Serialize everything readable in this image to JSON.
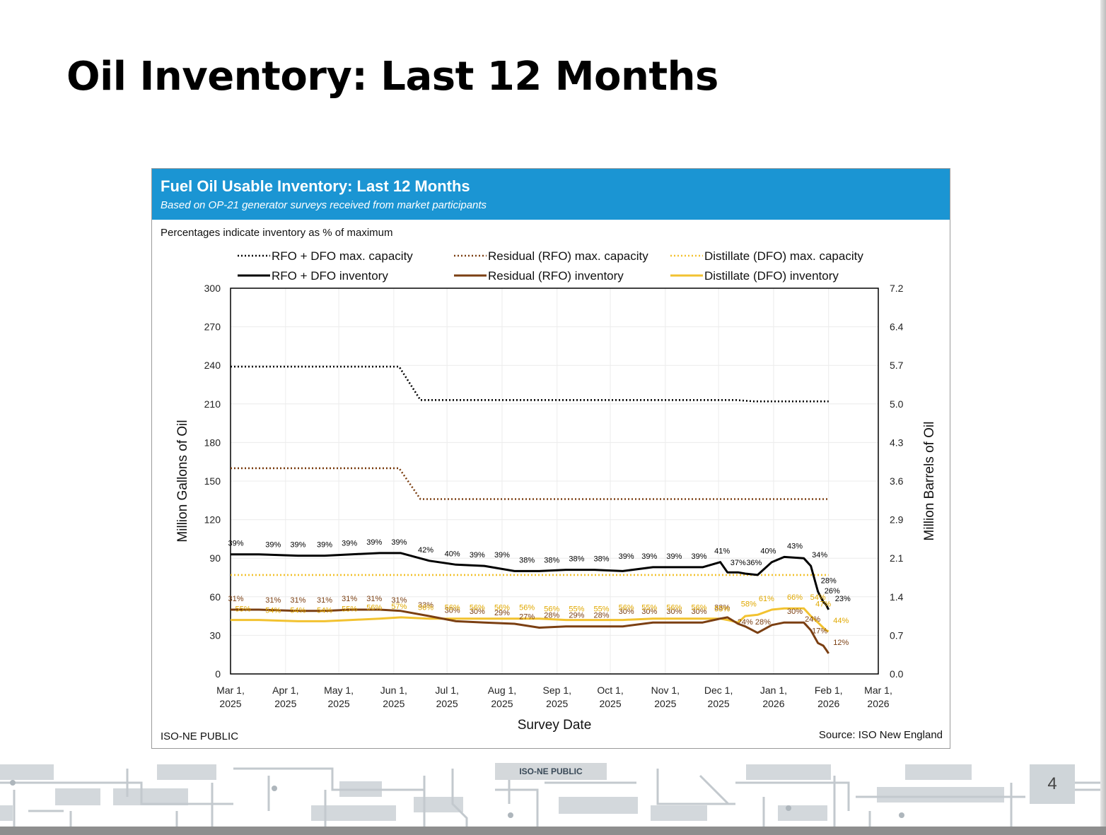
{
  "slide": {
    "title": "Oil Inventory: Last 12 Months",
    "footer_tag": "ISO-NE PUBLIC",
    "page_number": "4"
  },
  "panel": {
    "title": "Fuel Oil Usable Inventory: Last 12 Months",
    "subtitle": "Based on OP-21 generator surveys received from market participants",
    "note": "Percentages indicate inventory as % of maximum",
    "footer_left": "ISO-NE PUBLIC",
    "footer_right": "Source: ISO New England"
  },
  "colors": {
    "header": "#1b95d3",
    "total": "#000000",
    "rfo": "#7b3f12",
    "dfo": "#f2c230",
    "dfo_label": "#e0a800",
    "rfo_label": "#7b3f12"
  },
  "chart_data": {
    "type": "line",
    "title": "Fuel Oil Usable Inventory: Last 12 Months",
    "xlabel": "Survey Date",
    "ylabel": "Million Gallons of Oil",
    "y2label": "Million Barrels of Oil",
    "ylim": [
      0,
      300
    ],
    "yticks": [
      0,
      30,
      60,
      90,
      120,
      150,
      180,
      210,
      240,
      270,
      300
    ],
    "y2ticks": [
      "0.0",
      "0.7",
      "1.4",
      "2.1",
      "2.9",
      "3.6",
      "4.3",
      "5.0",
      "5.7",
      "6.4",
      "7.2"
    ],
    "x_range_days": [
      0,
      365
    ],
    "xticks": [
      {
        "day": 0,
        "line1": "Mar 1,",
        "line2": "2025"
      },
      {
        "day": 31,
        "line1": "Apr 1,",
        "line2": "2025"
      },
      {
        "day": 61,
        "line1": "May 1,",
        "line2": "2025"
      },
      {
        "day": 92,
        "line1": "Jun 1,",
        "line2": "2025"
      },
      {
        "day": 122,
        "line1": "Jul 1,",
        "line2": "2025"
      },
      {
        "day": 153,
        "line1": "Aug 1,",
        "line2": "2025"
      },
      {
        "day": 184,
        "line1": "Sep 1,",
        "line2": "2025"
      },
      {
        "day": 214,
        "line1": "Oct 1,",
        "line2": "2025"
      },
      {
        "day": 245,
        "line1": "Nov 1,",
        "line2": "2025"
      },
      {
        "day": 275,
        "line1": "Dec 1,",
        "line2": "2025"
      },
      {
        "day": 306,
        "line1": "Jan 1,",
        "line2": "2026"
      },
      {
        "day": 337,
        "line1": "Feb 1,",
        "line2": "2026"
      },
      {
        "day": 365,
        "line1": "Mar 1,",
        "line2": "2026"
      }
    ],
    "legend": [
      {
        "label": "RFO + DFO max. capacity",
        "series": "total_max"
      },
      {
        "label": "Residual (RFO) max. capacity",
        "series": "rfo_max"
      },
      {
        "label": "Distillate (DFO) max. capacity",
        "series": "dfo_max"
      },
      {
        "label": "RFO + DFO inventory",
        "series": "total"
      },
      {
        "label": "Residual (RFO) inventory",
        "series": "rfo"
      },
      {
        "label": "Distillate (DFO) inventory",
        "series": "dfo"
      }
    ],
    "series": [
      {
        "key": "total_max",
        "name": "RFO + DFO max. capacity",
        "style": "dotted",
        "color": "#000000",
        "x": [
          0,
          95,
          107,
          285,
          295,
          337
        ],
        "y": [
          239,
          239,
          213,
          213,
          212,
          212
        ]
      },
      {
        "key": "rfo_max",
        "name": "Residual (RFO) max. capacity",
        "style": "dotted",
        "color": "#7b3f12",
        "x": [
          0,
          95,
          107,
          337
        ],
        "y": [
          160,
          160,
          136,
          136
        ]
      },
      {
        "key": "dfo_max",
        "name": "Distillate (DFO) max. capacity",
        "style": "dotted",
        "color": "#f2c230",
        "x": [
          0,
          337
        ],
        "y": [
          77,
          77
        ]
      },
      {
        "key": "total",
        "name": "RFO + DFO inventory",
        "style": "solid",
        "color": "#000000",
        "x": [
          0,
          16,
          38,
          53,
          68,
          84,
          96,
          112,
          127,
          143,
          160,
          174,
          189,
          205,
          221,
          238,
          252,
          266,
          276,
          280,
          286,
          290,
          297,
          305,
          312,
          323,
          327,
          331,
          334,
          335.5,
          337
        ],
        "y": [
          93,
          93,
          92,
          92,
          93,
          94,
          94,
          88,
          85,
          84,
          80,
          80,
          81,
          81,
          80,
          83,
          83,
          83,
          87,
          79,
          79,
          78,
          77,
          87,
          91,
          90,
          84,
          64,
          56,
          54,
          50
        ],
        "labels": [
          {
            "x": 3,
            "y": 93,
            "text": "39%"
          },
          {
            "x": 24,
            "y": 92,
            "text": "39%"
          },
          {
            "x": 38,
            "y": 92,
            "text": "39%"
          },
          {
            "x": 53,
            "y": 92,
            "text": "39%"
          },
          {
            "x": 67,
            "y": 93,
            "text": "39%"
          },
          {
            "x": 81,
            "y": 94,
            "text": "39%"
          },
          {
            "x": 95,
            "y": 94,
            "text": "39%"
          },
          {
            "x": 110,
            "y": 88,
            "text": "42%"
          },
          {
            "x": 125,
            "y": 85,
            "text": "40%"
          },
          {
            "x": 139,
            "y": 84,
            "text": "39%"
          },
          {
            "x": 153,
            "y": 84,
            "text": "39%"
          },
          {
            "x": 167,
            "y": 80,
            "text": "38%"
          },
          {
            "x": 181,
            "y": 80,
            "text": "38%"
          },
          {
            "x": 195,
            "y": 81,
            "text": "38%"
          },
          {
            "x": 209,
            "y": 81,
            "text": "38%"
          },
          {
            "x": 223,
            "y": 83,
            "text": "39%"
          },
          {
            "x": 236,
            "y": 83,
            "text": "39%"
          },
          {
            "x": 250,
            "y": 83,
            "text": "39%"
          },
          {
            "x": 264,
            "y": 83,
            "text": "39%"
          },
          {
            "x": 277,
            "y": 87,
            "text": "41%"
          },
          {
            "x": 286,
            "y": 78,
            "text": "37%"
          },
          {
            "x": 295,
            "y": 78,
            "text": "36%"
          },
          {
            "x": 303,
            "y": 87,
            "text": "40%"
          },
          {
            "x": 318,
            "y": 91,
            "text": "43%"
          },
          {
            "x": 332,
            "y": 84,
            "text": "34%"
          },
          {
            "x": 337,
            "y": 64,
            "text": "28%"
          },
          {
            "x": 339,
            "y": 56,
            "text": "26%"
          },
          {
            "x": 345,
            "y": 50,
            "text": "23%"
          }
        ]
      },
      {
        "key": "rfo",
        "name": "Residual (RFO) inventory",
        "style": "solid",
        "color": "#7b3f12",
        "x": [
          0,
          16,
          38,
          53,
          68,
          84,
          96,
          112,
          127,
          143,
          160,
          174,
          189,
          205,
          221,
          238,
          252,
          266,
          276,
          280,
          286,
          290,
          297,
          305,
          312,
          323,
          327,
          331,
          334,
          335.5,
          337
        ],
        "y": [
          50,
          50,
          49,
          49,
          50,
          50,
          49,
          45,
          41,
          40,
          39,
          36,
          37,
          37,
          37,
          40,
          40,
          40,
          43,
          44,
          39,
          37,
          32,
          38,
          40,
          40,
          34,
          24,
          22,
          19,
          16
        ],
        "labels": [
          {
            "x": 3,
            "y": 50,
            "text": "31%"
          },
          {
            "x": 24,
            "y": 49,
            "text": "31%"
          },
          {
            "x": 38,
            "y": 49,
            "text": "31%"
          },
          {
            "x": 53,
            "y": 49,
            "text": "31%"
          },
          {
            "x": 67,
            "y": 50,
            "text": "31%"
          },
          {
            "x": 81,
            "y": 50,
            "text": "31%"
          },
          {
            "x": 95,
            "y": 49,
            "text": "31%"
          },
          {
            "x": 110,
            "y": 45,
            "text": "33%"
          },
          {
            "x": 125,
            "y": 41,
            "text": "30%"
          },
          {
            "x": 139,
            "y": 40,
            "text": "30%"
          },
          {
            "x": 153,
            "y": 39,
            "text": "29%"
          },
          {
            "x": 167,
            "y": 36,
            "text": "27%"
          },
          {
            "x": 181,
            "y": 37,
            "text": "28%"
          },
          {
            "x": 195,
            "y": 37,
            "text": "29%"
          },
          {
            "x": 209,
            "y": 37,
            "text": "28%"
          },
          {
            "x": 223,
            "y": 40,
            "text": "30%"
          },
          {
            "x": 236,
            "y": 40,
            "text": "30%"
          },
          {
            "x": 250,
            "y": 40,
            "text": "30%"
          },
          {
            "x": 264,
            "y": 40,
            "text": "30%"
          },
          {
            "x": 277,
            "y": 43,
            "text": "33%"
          },
          {
            "x": 290,
            "y": 32,
            "text": "24%"
          },
          {
            "x": 300,
            "y": 32,
            "text": "28%"
          },
          {
            "x": 318,
            "y": 40,
            "text": "30%"
          },
          {
            "x": 328,
            "y": 34,
            "text": "24%"
          },
          {
            "x": 332,
            "y": 25,
            "text": "17%"
          },
          {
            "x": 344,
            "y": 16,
            "text": "12%"
          }
        ]
      },
      {
        "key": "dfo",
        "name": "Distillate (DFO) inventory",
        "style": "solid",
        "color": "#f2c230",
        "x": [
          0,
          16,
          38,
          53,
          68,
          84,
          96,
          112,
          127,
          143,
          160,
          174,
          189,
          205,
          221,
          238,
          252,
          266,
          276,
          280,
          286,
          290,
          297,
          305,
          312,
          323,
          327,
          331,
          334,
          335.5,
          337
        ],
        "y": [
          42,
          42,
          41,
          41,
          42,
          43,
          44,
          43,
          43,
          43,
          43,
          43,
          42,
          42,
          42,
          43,
          43,
          43,
          43,
          42,
          40,
          45,
          46,
          50,
          51,
          51,
          45,
          40,
          36,
          34,
          33
        ],
        "labels": [
          {
            "x": 7,
            "y": 42,
            "text": "55%"
          },
          {
            "x": 24,
            "y": 41,
            "text": "54%"
          },
          {
            "x": 38,
            "y": 41,
            "text": "54%"
          },
          {
            "x": 53,
            "y": 41,
            "text": "54%"
          },
          {
            "x": 67,
            "y": 42,
            "text": "55%"
          },
          {
            "x": 81,
            "y": 43,
            "text": "56%"
          },
          {
            "x": 95,
            "y": 44,
            "text": "57%"
          },
          {
            "x": 110,
            "y": 43,
            "text": "56%"
          },
          {
            "x": 125,
            "y": 43,
            "text": "56%"
          },
          {
            "x": 139,
            "y": 43,
            "text": "56%"
          },
          {
            "x": 153,
            "y": 43,
            "text": "56%"
          },
          {
            "x": 167,
            "y": 43,
            "text": "56%"
          },
          {
            "x": 181,
            "y": 42,
            "text": "56%"
          },
          {
            "x": 195,
            "y": 42,
            "text": "55%"
          },
          {
            "x": 209,
            "y": 42,
            "text": "55%"
          },
          {
            "x": 223,
            "y": 43,
            "text": "56%"
          },
          {
            "x": 236,
            "y": 43,
            "text": "55%"
          },
          {
            "x": 250,
            "y": 43,
            "text": "56%"
          },
          {
            "x": 264,
            "y": 43,
            "text": "56%"
          },
          {
            "x": 277,
            "y": 42,
            "text": "55%"
          },
          {
            "x": 292,
            "y": 46,
            "text": "58%"
          },
          {
            "x": 302,
            "y": 50,
            "text": "61%"
          },
          {
            "x": 318,
            "y": 51,
            "text": "66%"
          },
          {
            "x": 331,
            "y": 51,
            "text": "54%"
          },
          {
            "x": 334,
            "y": 46,
            "text": "47%"
          },
          {
            "x": 344,
            "y": 33,
            "text": "44%"
          }
        ]
      }
    ]
  }
}
